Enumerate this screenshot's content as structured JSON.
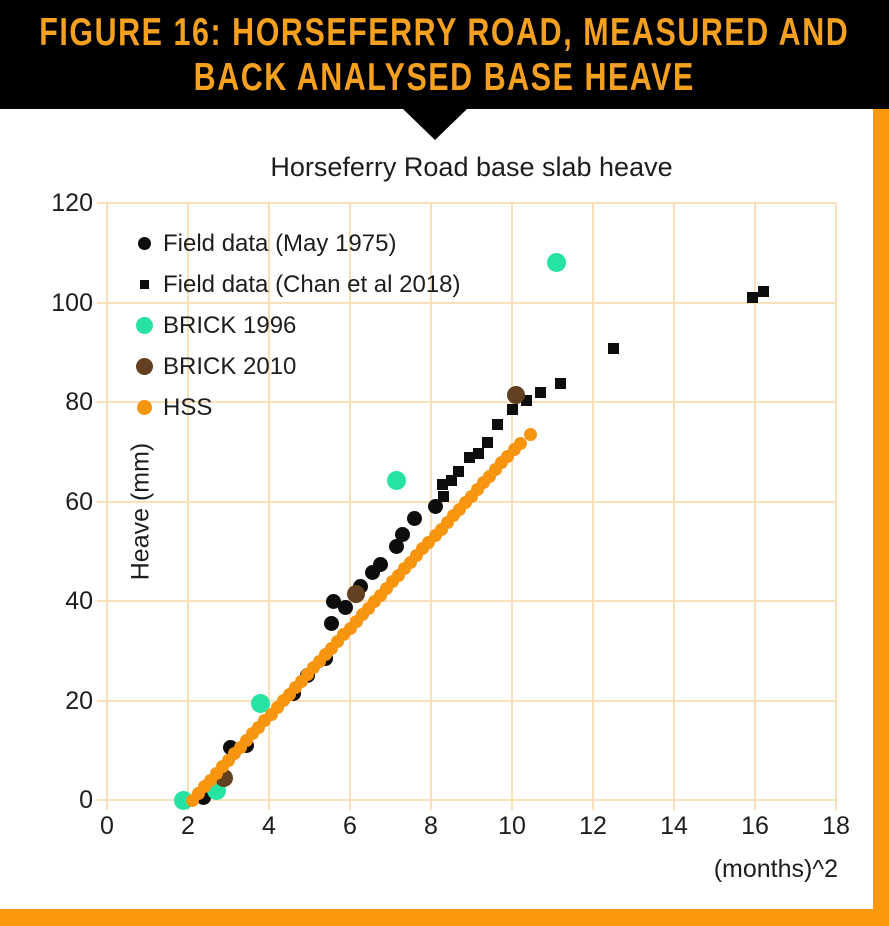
{
  "banner": {
    "title_line1": "FIGURE 16: HORSEFERRY ROAD, MEASURED AND",
    "title_line2": "BACK ANALYSED BASE HEAVE",
    "bg_color": "#000000",
    "text_color": "#F5A01E"
  },
  "accents": {
    "bar_color": "#F9990B",
    "grid_color": "#FAE0B8"
  },
  "chart_data": {
    "type": "scatter",
    "title": "Horseferry Road base slab heave",
    "xlabel": "(months)^2",
    "ylabel": "Heave (mm)",
    "xlim": [
      0,
      18
    ],
    "ylim": [
      0,
      120
    ],
    "xticks": [
      0,
      2,
      4,
      6,
      8,
      10,
      12,
      14,
      16,
      18
    ],
    "yticks": [
      0,
      20,
      40,
      60,
      80,
      100,
      120
    ],
    "grid": true,
    "legend_position": "top-left-inside",
    "series": [
      {
        "name": "Field data (May 1975)",
        "marker": "circle",
        "color": "#0d0d0d",
        "size": 15,
        "legend_size": 13,
        "points": [
          [
            2.38,
            0.5
          ],
          [
            3.05,
            10.5
          ],
          [
            3.45,
            11
          ],
          [
            4.6,
            21.5
          ],
          [
            4.95,
            25
          ],
          [
            5.4,
            28.5
          ],
          [
            5.55,
            35.5
          ],
          [
            5.6,
            39.8
          ],
          [
            5.9,
            38.7
          ],
          [
            6.25,
            43
          ],
          [
            6.55,
            45.8
          ],
          [
            6.75,
            47.3
          ],
          [
            7.15,
            51
          ],
          [
            7.3,
            53.4
          ],
          [
            7.6,
            56.5
          ],
          [
            8.1,
            59
          ]
        ]
      },
      {
        "name": "Field data (Chan et al 2018)",
        "marker": "square",
        "color": "#0d0d0d",
        "size": 11,
        "legend_size": 9,
        "points": [
          [
            8.3,
            61
          ],
          [
            8.28,
            63.5
          ],
          [
            8.5,
            64.2
          ],
          [
            8.67,
            66
          ],
          [
            8.95,
            68.8
          ],
          [
            9.18,
            69.6
          ],
          [
            9.4,
            71.8
          ],
          [
            9.63,
            75.5
          ],
          [
            10.02,
            78.4
          ],
          [
            10.35,
            80.4
          ],
          [
            10.7,
            82
          ],
          [
            11.2,
            83.8
          ],
          [
            12.5,
            90.7
          ],
          [
            15.95,
            101
          ],
          [
            16.2,
            102.3
          ]
        ]
      },
      {
        "name": "BRICK 1996",
        "marker": "circle",
        "color": "#27E3A1",
        "size": 19,
        "legend_size": 17,
        "points": [
          [
            1.9,
            0
          ],
          [
            2.7,
            2
          ],
          [
            3.8,
            19.3
          ],
          [
            7.15,
            64.3
          ],
          [
            11.1,
            108
          ]
        ]
      },
      {
        "name": "BRICK 2010",
        "marker": "circle",
        "color": "#63401F",
        "size": 18,
        "legend_size": 17,
        "points": [
          [
            2.9,
            4.5
          ],
          [
            6.15,
            41.5
          ],
          [
            10.1,
            81.4
          ]
        ]
      },
      {
        "name": "HSS",
        "marker": "circle",
        "color": "#F8950F",
        "size": 13,
        "legend_size": 15,
        "points": [
          [
            2.1,
            0
          ],
          [
            2.25,
            1.33
          ],
          [
            2.4,
            2.66
          ],
          [
            2.55,
            3.98
          ],
          [
            2.7,
            5.31
          ],
          [
            2.85,
            6.64
          ],
          [
            3.0,
            7.97
          ],
          [
            3.15,
            9.3
          ],
          [
            3.3,
            10.63
          ],
          [
            3.45,
            11.95
          ],
          [
            3.6,
            13.28
          ],
          [
            3.75,
            14.61
          ],
          [
            3.9,
            15.94
          ],
          [
            4.05,
            17.27
          ],
          [
            4.2,
            18.6
          ],
          [
            4.35,
            19.92
          ],
          [
            4.5,
            21.25
          ],
          [
            4.65,
            22.58
          ],
          [
            4.8,
            23.91
          ],
          [
            4.95,
            25.24
          ],
          [
            5.1,
            26.57
          ],
          [
            5.25,
            27.89
          ],
          [
            5.4,
            29.22
          ],
          [
            5.55,
            30.55
          ],
          [
            5.7,
            31.88
          ],
          [
            5.85,
            33.21
          ],
          [
            6.0,
            34.53
          ],
          [
            6.15,
            35.86
          ],
          [
            6.3,
            37.19
          ],
          [
            6.45,
            38.52
          ],
          [
            6.6,
            39.85
          ],
          [
            6.75,
            41.18
          ],
          [
            6.9,
            42.5
          ],
          [
            7.05,
            43.83
          ],
          [
            7.2,
            45.16
          ],
          [
            7.35,
            46.49
          ],
          [
            7.5,
            47.82
          ],
          [
            7.65,
            49.14
          ],
          [
            7.8,
            50.47
          ],
          [
            7.95,
            51.8
          ],
          [
            8.1,
            53.13
          ],
          [
            8.25,
            54.46
          ],
          [
            8.4,
            55.79
          ],
          [
            8.55,
            57.11
          ],
          [
            8.7,
            58.44
          ],
          [
            8.85,
            59.77
          ],
          [
            9.0,
            61.1
          ],
          [
            9.15,
            62.43
          ],
          [
            9.3,
            63.75
          ],
          [
            9.45,
            65.08
          ],
          [
            9.6,
            66.41
          ],
          [
            9.75,
            67.74
          ],
          [
            9.9,
            69.07
          ],
          [
            10.05,
            70.4
          ],
          [
            10.2,
            71.73
          ],
          [
            10.45,
            73.4
          ]
        ]
      }
    ]
  }
}
